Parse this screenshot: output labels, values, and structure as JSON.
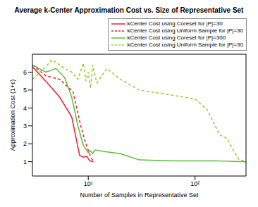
{
  "chart_data": {
    "type": "line",
    "title": "Average k-Center Approximation Cost vs. Size of Representative Set",
    "x_label": "Number of Samples in Representative Set",
    "y_label": "Approximation Cost (1+ε)",
    "log": "x",
    "grid": false,
    "legend": "upper right",
    "xlim": [
      3,
      300
    ],
    "xticks": [
      {
        "value": 10,
        "label": "10¹"
      },
      {
        "value": 100,
        "label": "10²"
      }
    ],
    "ylim": [
      0.2,
      7
    ],
    "yticks": [
      1,
      2,
      3,
      4,
      5,
      6
    ],
    "series": [
      {
        "name": "kCenter Cost using Coreset for |P|=30",
        "color": "#e8202a",
        "line_style": "solid",
        "x": [
          3,
          4,
          5.4,
          7,
          8.3,
          9,
          9.7,
          10.3,
          11.2
        ],
        "values": [
          6.3,
          5.5,
          4.6,
          3.5,
          1.35,
          1.25,
          1.3,
          1.05,
          1.0
        ]
      },
      {
        "name": "kCenter Cost using Uniform Sample for |P|=30",
        "color": "#e8202a",
        "line_style": "dashed",
        "x": [
          3,
          4,
          5.4,
          7.2,
          8.5,
          9.5,
          10.5,
          11.2
        ],
        "values": [
          6.4,
          5.8,
          5.6,
          4.9,
          3.0,
          2.0,
          1.3,
          1.0
        ]
      },
      {
        "name": "kCenter Cost using Coreset for |P|=300",
        "color": "#5bbf3a",
        "line_style": "solid",
        "x": [
          3,
          4,
          5,
          6,
          7,
          8,
          9,
          10,
          10.5,
          11,
          11.5,
          15,
          20,
          30,
          60,
          150,
          300
        ],
        "values": [
          6.4,
          6.0,
          6.2,
          5.7,
          4.6,
          3.0,
          1.9,
          1.5,
          1.6,
          1.45,
          1.65,
          1.55,
          1.45,
          1.1,
          1.05,
          1.05,
          1.0
        ]
      },
      {
        "name": "kCenter Cost using Uniform Sample for |P|=30",
        "color": "#9acd32",
        "line_style": "dashed",
        "x": [
          3,
          4,
          4.6,
          6,
          7,
          8,
          9,
          9.5,
          10,
          10.5,
          11,
          12,
          15,
          20,
          30,
          50,
          100,
          130,
          170,
          200,
          230,
          260,
          300
        ],
        "values": [
          5.6,
          6.3,
          6.7,
          6.2,
          6.0,
          5.6,
          6.5,
          5.5,
          6.0,
          5.1,
          6.4,
          5.4,
          6.2,
          5.6,
          5.0,
          4.8,
          4.5,
          3.9,
          2.5,
          2.3,
          1.6,
          1.1,
          1.05
        ]
      }
    ]
  }
}
